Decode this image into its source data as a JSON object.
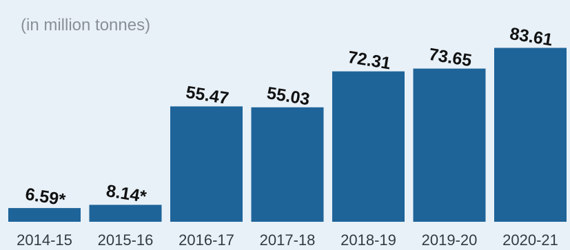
{
  "chart_data": {
    "type": "bar",
    "subtitle": "(in million tonnes)",
    "categories": [
      "2014-15",
      "2015-16",
      "2016-17",
      "2017-18",
      "2018-19",
      "2019-20",
      "2020-21"
    ],
    "values": [
      6.59,
      8.14,
      55.47,
      55.03,
      72.31,
      73.65,
      83.61
    ],
    "value_labels": [
      "6.59*",
      "8.14*",
      "55.47",
      "55.03",
      "72.31",
      "73.65",
      "83.61"
    ],
    "ylim": [
      0,
      90
    ],
    "grid": false,
    "legend": "none",
    "bar_color": "#1e6499",
    "background_color": "#e8f1f8"
  }
}
